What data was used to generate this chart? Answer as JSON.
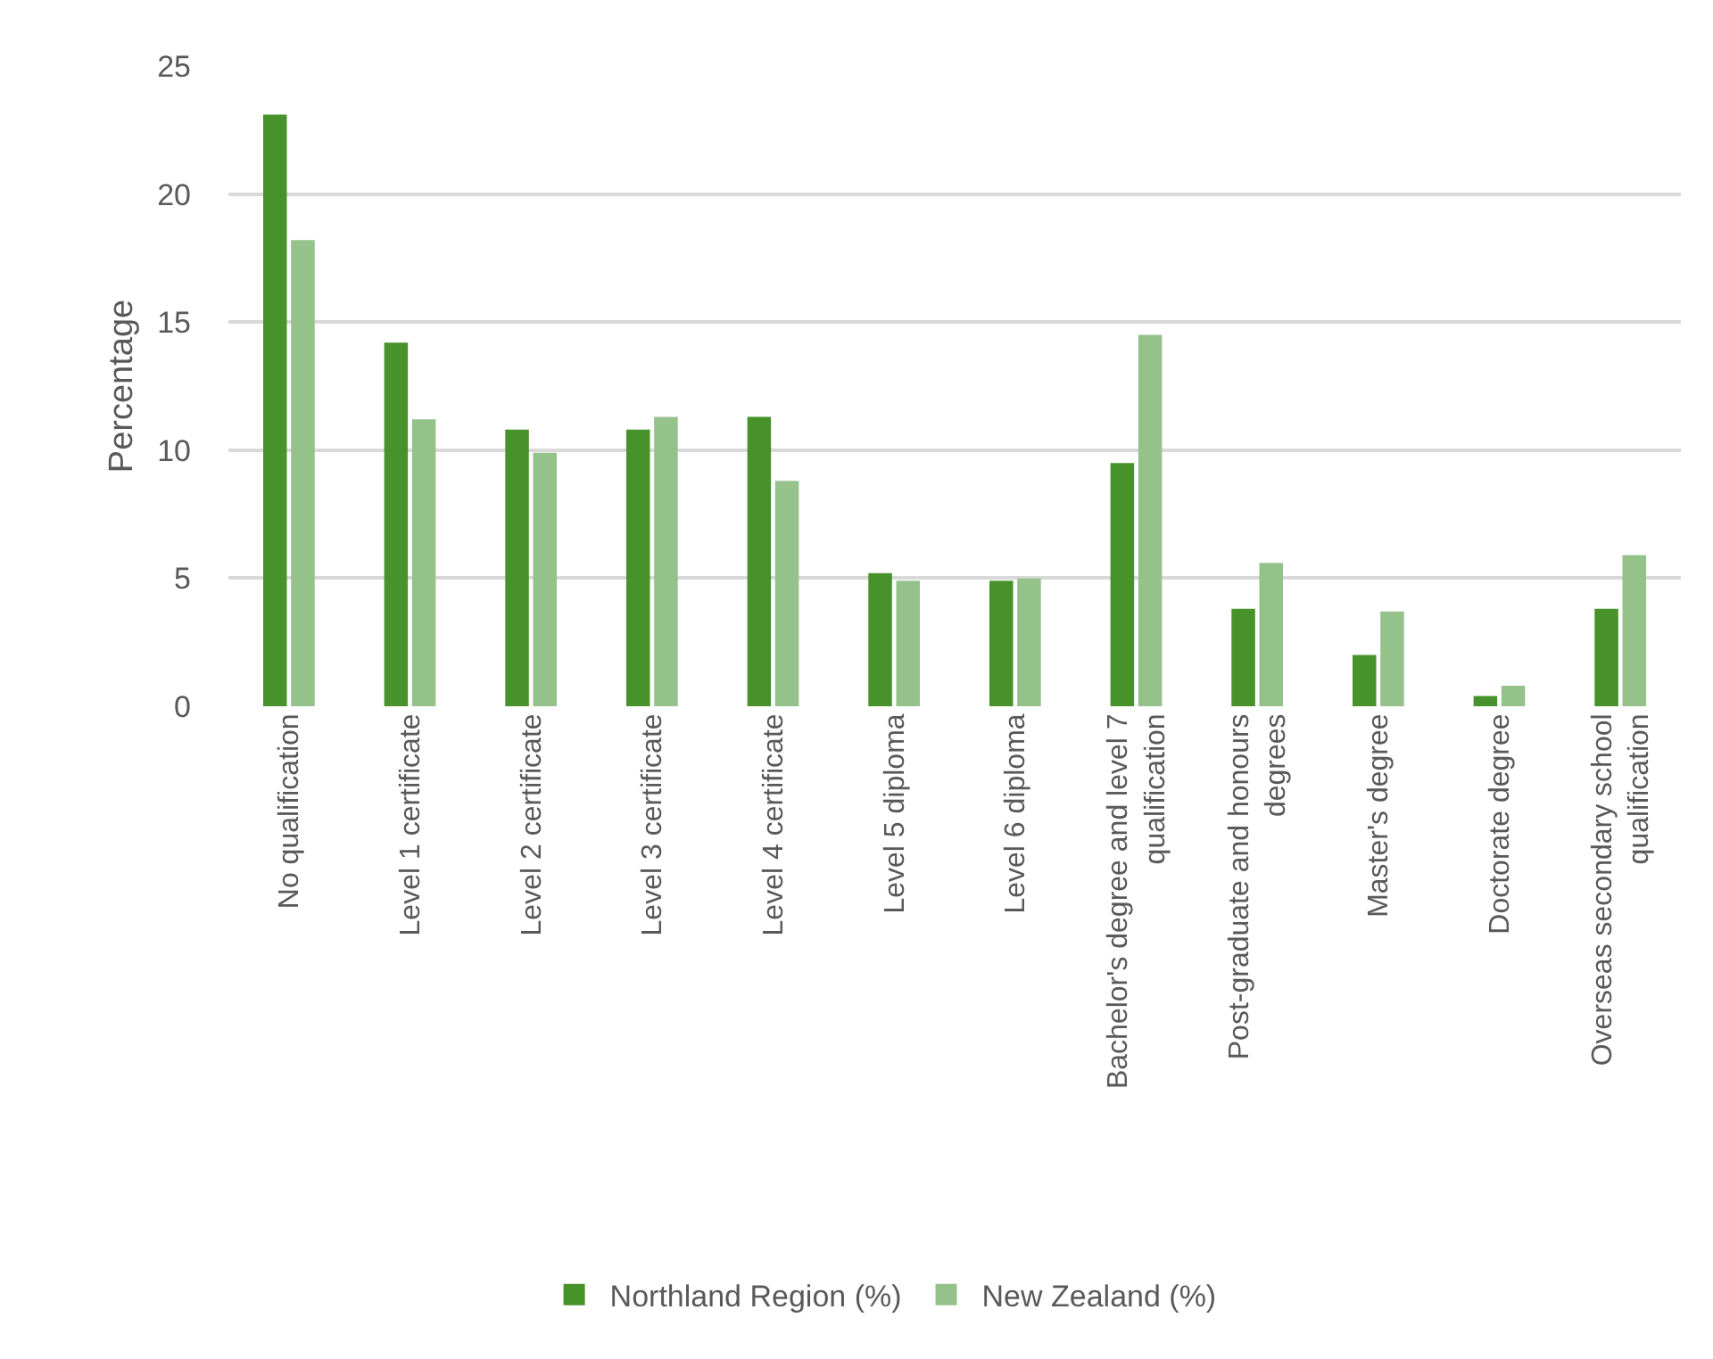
{
  "chart_data": {
    "type": "bar",
    "ylabel": "Percentage",
    "categories": [
      "No qualification",
      "Level 1 certificate",
      "Level 2 certificate",
      "Level 3 certificate",
      "Level 4 certificate",
      "Level 5 diploma",
      "Level 6 diploma",
      "Bachelor's degree and level 7 qualification",
      "Post-graduate and honours degrees",
      "Master's degree",
      "Doctorate degree",
      "Overseas secondary school qualification"
    ],
    "series": [
      {
        "name": "Northland Region (%)",
        "color": "#47922a",
        "values": [
          23.1,
          14.2,
          10.8,
          10.8,
          11.3,
          5.2,
          4.9,
          9.5,
          3.8,
          2.0,
          0.4,
          3.8
        ]
      },
      {
        "name": "New Zealand (%)",
        "color": "#95c28b",
        "values": [
          18.2,
          11.2,
          9.9,
          11.3,
          8.8,
          4.9,
          5.0,
          14.5,
          5.6,
          3.7,
          0.8,
          5.9
        ]
      }
    ],
    "ylim": [
      0,
      25
    ],
    "yticks": [
      0,
      5,
      10,
      15,
      20,
      25
    ],
    "grid": "y",
    "legend": "bottom"
  }
}
